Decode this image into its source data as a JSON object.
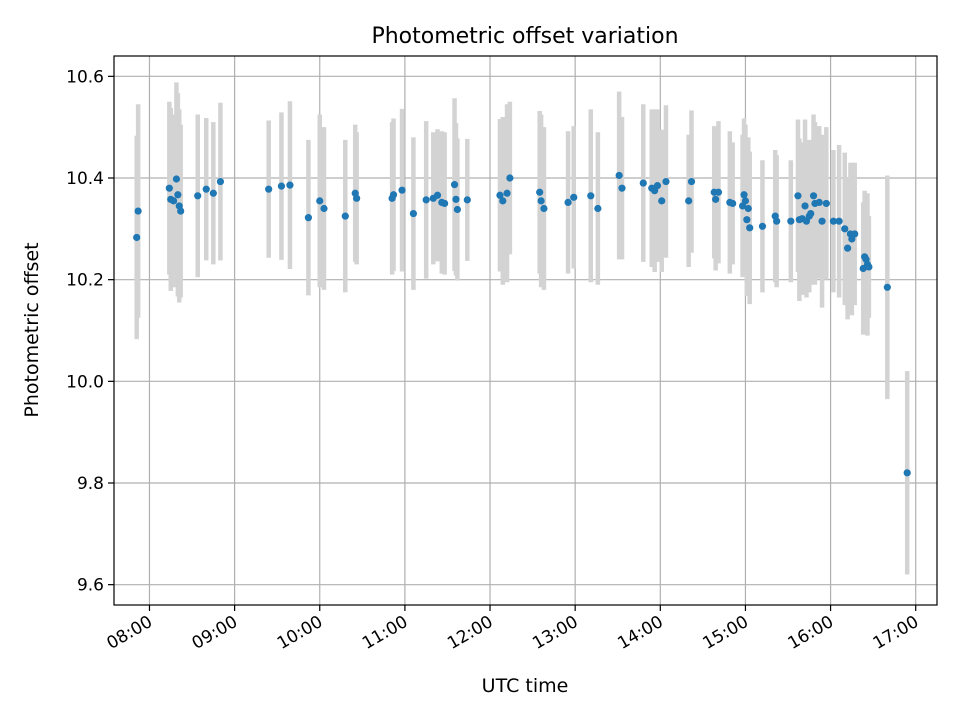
{
  "chart_data": {
    "type": "scatter",
    "title": "Photometric offset variation",
    "xlabel": "UTC time",
    "ylabel": "Photometric offset",
    "x_unit": "UTC hours",
    "xlim": [
      "07:35",
      "17:15"
    ],
    "ylim": [
      9.56,
      10.64
    ],
    "x_ticks": [
      "08:00",
      "09:00",
      "10:00",
      "11:00",
      "12:00",
      "13:00",
      "14:00",
      "15:00",
      "16:00",
      "17:00"
    ],
    "y_ticks": [
      "9.6",
      "9.8",
      "10.0",
      "10.2",
      "10.4",
      "10.6"
    ],
    "grid": true,
    "legend": "none",
    "colors": {
      "points": "#1f77b4",
      "error_bars": "#d3d3d3",
      "grid": "#b0b0b0"
    },
    "series": [
      {
        "points": [
          [
            "07:51",
            10.283,
            0.2
          ],
          [
            "07:52",
            10.335,
            0.21
          ],
          [
            "08:14",
            10.38,
            0.17
          ],
          [
            "08:15",
            10.358,
            0.18
          ],
          [
            "08:17",
            10.355,
            0.17
          ],
          [
            "08:19",
            10.398,
            0.19
          ],
          [
            "08:20",
            10.367,
            0.2
          ],
          [
            "08:21",
            10.345,
            0.19
          ],
          [
            "08:22",
            10.335,
            0.17
          ],
          [
            "08:34",
            10.365,
            0.16
          ],
          [
            "08:40",
            10.378,
            0.14
          ],
          [
            "08:45",
            10.37,
            0.14
          ],
          [
            "08:50",
            10.393,
            0.155
          ],
          [
            "09:24",
            10.378,
            0.135
          ],
          [
            "09:33",
            10.384,
            0.145
          ],
          [
            "09:39",
            10.386,
            0.165
          ],
          [
            "09:52",
            10.322,
            0.153
          ],
          [
            "10:00",
            10.355,
            0.17
          ],
          [
            "10:03",
            10.34,
            0.16
          ],
          [
            "10:18",
            10.325,
            0.15
          ],
          [
            "10:25",
            10.37,
            0.135
          ],
          [
            "10:26",
            10.36,
            0.13
          ],
          [
            "10:51",
            10.36,
            0.15
          ],
          [
            "10:52",
            10.367,
            0.15
          ],
          [
            "10:58",
            10.376,
            0.16
          ],
          [
            "11:06",
            10.33,
            0.15
          ],
          [
            "11:15",
            10.357,
            0.155
          ],
          [
            "11:20",
            10.36,
            0.13
          ],
          [
            "11:23",
            10.366,
            0.13
          ],
          [
            "11:26",
            10.352,
            0.14
          ],
          [
            "11:28",
            10.35,
            0.14
          ],
          [
            "11:35",
            10.387,
            0.17
          ],
          [
            "11:36",
            10.358,
            0.15
          ],
          [
            "11:37",
            10.338,
            0.14
          ],
          [
            "11:44",
            10.357,
            0.12
          ],
          [
            "12:07",
            10.366,
            0.15
          ],
          [
            "12:09",
            10.355,
            0.165
          ],
          [
            "12:12",
            10.37,
            0.175
          ],
          [
            "12:14",
            10.4,
            0.15
          ],
          [
            "12:35",
            10.372,
            0.16
          ],
          [
            "12:36",
            10.355,
            0.17
          ],
          [
            "12:38",
            10.34,
            0.16
          ],
          [
            "12:55",
            10.352,
            0.14
          ],
          [
            "12:59",
            10.362,
            0.14
          ],
          [
            "13:11",
            10.365,
            0.17
          ],
          [
            "13:16",
            10.34,
            0.15
          ],
          [
            "13:31",
            10.405,
            0.165
          ],
          [
            "13:33",
            10.38,
            0.14
          ],
          [
            "13:48",
            10.39,
            0.155
          ],
          [
            "13:54",
            10.38,
            0.155
          ],
          [
            "13:56",
            10.375,
            0.16
          ],
          [
            "13:58",
            10.385,
            0.15
          ],
          [
            "14:01",
            10.355,
            0.14
          ],
          [
            "14:04",
            10.393,
            0.15
          ],
          [
            "14:20",
            10.355,
            0.13
          ],
          [
            "14:22",
            10.393,
            0.14
          ],
          [
            "14:38",
            10.372,
            0.13
          ],
          [
            "14:39",
            10.358,
            0.14
          ],
          [
            "14:41",
            10.372,
            0.14
          ],
          [
            "14:49",
            10.352,
            0.14
          ],
          [
            "14:51",
            10.35,
            0.12
          ],
          [
            "14:58",
            10.345,
            0.14
          ],
          [
            "14:59",
            10.367,
            0.15
          ],
          [
            "15:00",
            10.355,
            0.15
          ],
          [
            "15:01",
            10.318,
            0.15
          ],
          [
            "15:02",
            10.34,
            0.14
          ],
          [
            "15:03",
            10.302,
            0.15
          ],
          [
            "15:12",
            10.305,
            0.13
          ],
          [
            "15:21",
            10.325,
            0.13
          ],
          [
            "15:22",
            10.315,
            0.13
          ],
          [
            "15:32",
            10.315,
            0.12
          ],
          [
            "15:37",
            10.365,
            0.15
          ],
          [
            "15:38",
            10.318,
            0.16
          ],
          [
            "15:40",
            10.32,
            0.15
          ],
          [
            "15:42",
            10.345,
            0.17
          ],
          [
            "15:43",
            10.315,
            0.15
          ],
          [
            "15:45",
            10.325,
            0.15
          ],
          [
            "15:46",
            10.33,
            0.14
          ],
          [
            "15:48",
            10.365,
            0.16
          ],
          [
            "15:49",
            10.35,
            0.16
          ],
          [
            "15:52",
            10.352,
            0.15
          ],
          [
            "15:54",
            10.315,
            0.17
          ],
          [
            "15:57",
            10.35,
            0.15
          ],
          [
            "16:02",
            10.315,
            0.14
          ],
          [
            "16:06",
            10.315,
            0.15
          ],
          [
            "16:10",
            10.3,
            0.15
          ],
          [
            "16:12",
            10.262,
            0.14
          ],
          [
            "16:14",
            10.29,
            0.14
          ],
          [
            "16:15",
            10.28,
            0.15
          ],
          [
            "16:17",
            10.29,
            0.14
          ],
          [
            "16:23",
            10.222,
            0.13
          ],
          [
            "16:24",
            10.245,
            0.13
          ],
          [
            "16:25",
            10.24,
            0.12
          ],
          [
            "16:26",
            10.23,
            0.14
          ],
          [
            "16:27",
            10.225,
            0.1
          ],
          [
            "16:40",
            10.185,
            0.22
          ],
          [
            "16:54",
            9.82,
            0.2
          ]
        ]
      }
    ]
  }
}
